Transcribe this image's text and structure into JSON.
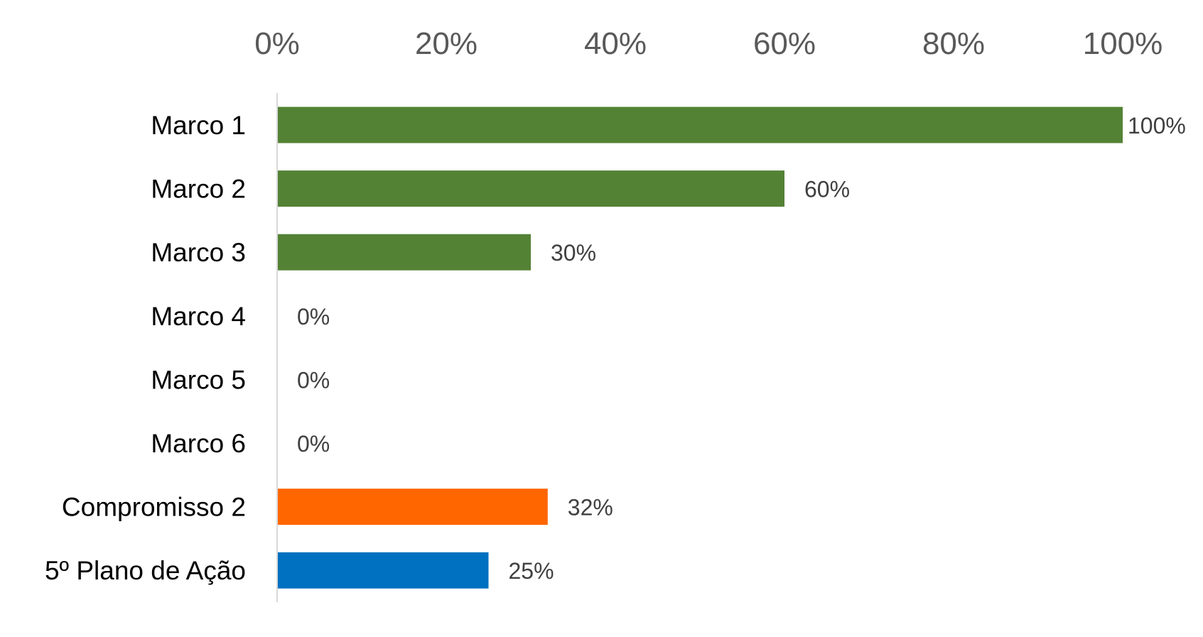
{
  "chart_data": {
    "type": "bar",
    "orientation": "horizontal",
    "categories": [
      "Marco 1",
      "Marco 2",
      "Marco 3",
      "Marco 4",
      "Marco 5",
      "Marco 6",
      "Compromisso 2",
      "5º Plano de Ação"
    ],
    "values": [
      100,
      60,
      30,
      0,
      0,
      0,
      32,
      25
    ],
    "data_labels": [
      "100%",
      "60%",
      "30%",
      "0%",
      "0%",
      "0%",
      "32%",
      "25%"
    ],
    "bar_colors": [
      "#548235",
      "#548235",
      "#548235",
      "#548235",
      "#548235",
      "#548235",
      "#FF6600",
      "#0070C0"
    ],
    "x_ticks": [
      "0%",
      "20%",
      "40%",
      "60%",
      "80%",
      "100%"
    ],
    "x_tick_values": [
      0,
      20,
      40,
      60,
      80,
      100
    ],
    "xlim": [
      0,
      100
    ],
    "x_axis_position": "top",
    "grid": false,
    "legend": "none",
    "title": "",
    "xlabel": "",
    "ylabel": ""
  }
}
